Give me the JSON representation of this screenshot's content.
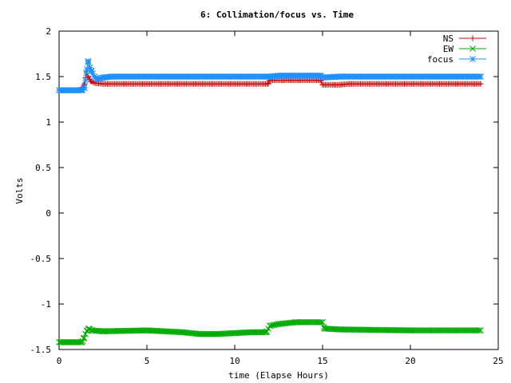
{
  "chart_data": {
    "type": "line",
    "title": "6: Collimation/focus vs. Time",
    "xlabel": "time (Elapse Hours)",
    "ylabel": "Volts",
    "xlim": [
      0,
      25
    ],
    "ylim": [
      -1.5,
      2
    ],
    "xticks": [
      0,
      5,
      10,
      15,
      20,
      25
    ],
    "xtick_labels": [
      "0",
      "5",
      "10",
      "15",
      "20",
      "25"
    ],
    "yticks": [
      -1.5,
      -1,
      -0.5,
      0,
      0.5,
      1,
      1.5,
      2
    ],
    "ytick_labels": [
      "-1.5",
      "-1",
      "-0.5",
      "0",
      "0.5",
      "1",
      "1.5",
      "2"
    ],
    "legend_position": "top-right",
    "series": [
      {
        "name": "NS",
        "color": "#cc0000",
        "marker": "plus",
        "points": [
          [
            0,
            1.35
          ],
          [
            1.0,
            1.35
          ],
          [
            1.3,
            1.36
          ],
          [
            1.45,
            1.42
          ],
          [
            1.55,
            1.56
          ],
          [
            1.65,
            1.5
          ],
          [
            1.8,
            1.45
          ],
          [
            2.0,
            1.43
          ],
          [
            2.5,
            1.42
          ],
          [
            5,
            1.42
          ],
          [
            10,
            1.42
          ],
          [
            11.9,
            1.42
          ],
          [
            12.0,
            1.46
          ],
          [
            14.9,
            1.46
          ],
          [
            15.0,
            1.41
          ],
          [
            16.0,
            1.41
          ],
          [
            16.5,
            1.42
          ],
          [
            24,
            1.42
          ]
        ]
      },
      {
        "name": "EW",
        "color": "#00aa00",
        "marker": "cross",
        "points": [
          [
            0,
            -1.42
          ],
          [
            1.3,
            -1.42
          ],
          [
            1.4,
            -1.38
          ],
          [
            1.5,
            -1.33
          ],
          [
            1.6,
            -1.29
          ],
          [
            1.7,
            -1.27
          ],
          [
            1.85,
            -1.29
          ],
          [
            2.5,
            -1.3
          ],
          [
            5,
            -1.29
          ],
          [
            6,
            -1.3
          ],
          [
            7,
            -1.31
          ],
          [
            8,
            -1.33
          ],
          [
            9,
            -1.33
          ],
          [
            10,
            -1.32
          ],
          [
            11,
            -1.31
          ],
          [
            11.8,
            -1.31
          ],
          [
            12.0,
            -1.24
          ],
          [
            12.5,
            -1.22
          ],
          [
            13.5,
            -1.2
          ],
          [
            15.0,
            -1.2
          ],
          [
            15.1,
            -1.27
          ],
          [
            16,
            -1.28
          ],
          [
            20,
            -1.29
          ],
          [
            24,
            -1.29
          ]
        ]
      },
      {
        "name": "focus",
        "color": "#1e90ff",
        "marker": "star",
        "points": [
          [
            0,
            1.35
          ],
          [
            1.3,
            1.35
          ],
          [
            1.45,
            1.38
          ],
          [
            1.55,
            1.54
          ],
          [
            1.65,
            1.67
          ],
          [
            1.75,
            1.6
          ],
          [
            1.85,
            1.56
          ],
          [
            2.0,
            1.5
          ],
          [
            2.2,
            1.47
          ],
          [
            2.5,
            1.49
          ],
          [
            3.0,
            1.5
          ],
          [
            11.9,
            1.5
          ],
          [
            12.0,
            1.5
          ],
          [
            12.5,
            1.51
          ],
          [
            14.9,
            1.51
          ],
          [
            15.0,
            1.49
          ],
          [
            16,
            1.5
          ],
          [
            24,
            1.5
          ]
        ]
      }
    ]
  }
}
